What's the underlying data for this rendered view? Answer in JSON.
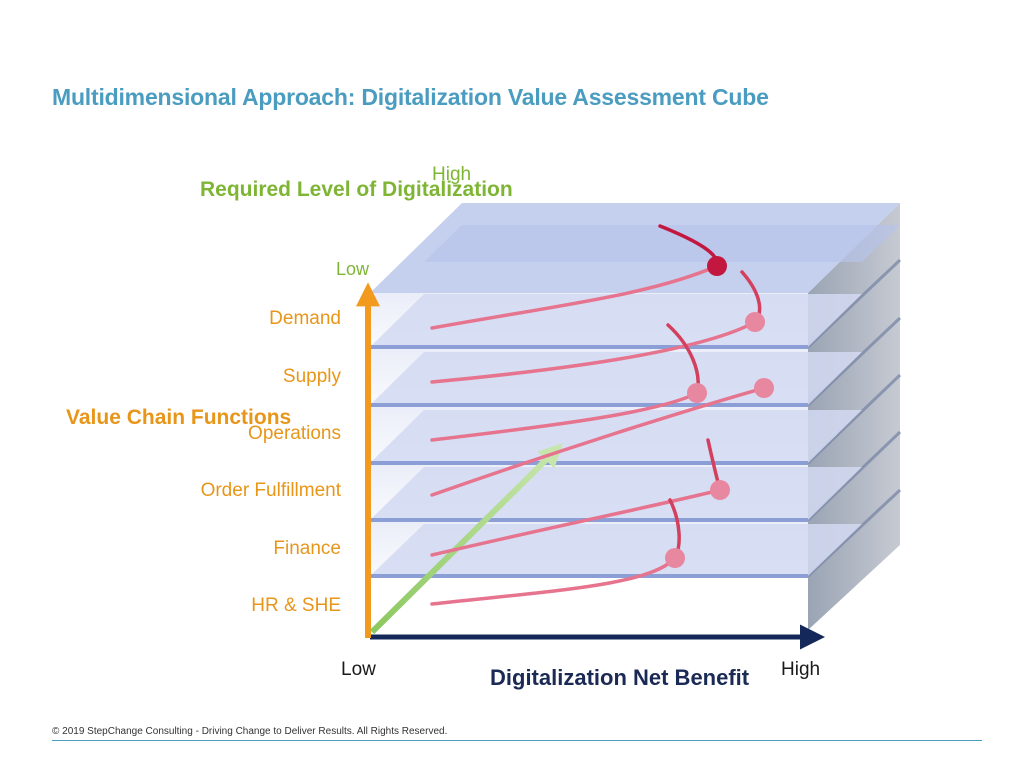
{
  "slide": {
    "title": "Multidimensional Approach: Digitalization Value Assessment Cube",
    "footer": "© 2019 StepChange Consulting - Driving Change to Deliver Results. All Rights Reserved."
  },
  "axes": {
    "required_level": {
      "title": "Required Level of Digitalization",
      "high_label": "High",
      "low_label": "Low",
      "color": "#7fb534"
    },
    "value_chain": {
      "title": "Value Chain Functions",
      "color": "#e8961a",
      "functions": [
        "Demand",
        "Supply",
        "Operations",
        "Order Fulfillment",
        "Finance",
        "HR & SHE"
      ]
    },
    "net_benefit": {
      "title": "Digitalization Net Benefit",
      "low_label": "Low",
      "high_label": "High",
      "color": "#14285a"
    }
  },
  "colors": {
    "layer_fill": "#dde3f5",
    "layer_top": "#c9d2ee",
    "side_face": "#b3b8c4",
    "curve_pink": "#e6748e",
    "curve_dark": "#c2183f",
    "marker_pink": "#e888a0",
    "marker_dark": "#c2183f",
    "title_blue": "#4a9cc1"
  }
}
